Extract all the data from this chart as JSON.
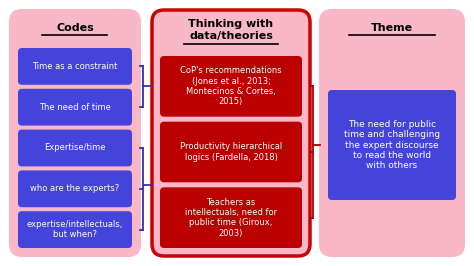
{
  "column1": {
    "title": "Codes",
    "bg_color": "#f9b8c8",
    "items": [
      "Time as a constraint",
      "The need of time",
      "Expertise/time",
      "who are the experts?",
      "expertise/intellectuals,\nbut when?"
    ],
    "item_bg": "#4444dd",
    "item_text_color": "white"
  },
  "column2": {
    "title": "Thinking with\ndata/theories",
    "bg_color": "#f9b8c8",
    "border_color": "#cc0000",
    "items": [
      "CoP's recommendations\n(Jones et al., 2013;\nMontecinos & Cortes,\n2015)",
      "Productivity hierarchical\nlogics (Fardella, 2018)",
      "Teachers as\nintellectuals, need for\npublic time (Giroux,\n2003)"
    ],
    "item_bg": "#bb0000",
    "item_text_color": "white"
  },
  "column3": {
    "title": "Theme",
    "bg_color": "#f9b8c8",
    "items": [
      "The need for public\ntime and challenging\nthe expert discourse\nto read the world\nwith others"
    ],
    "item_bg": "#4444dd",
    "item_text_color": "white"
  },
  "connector_color_left": "#3333aa",
  "connector_color_right": "#aa0000"
}
